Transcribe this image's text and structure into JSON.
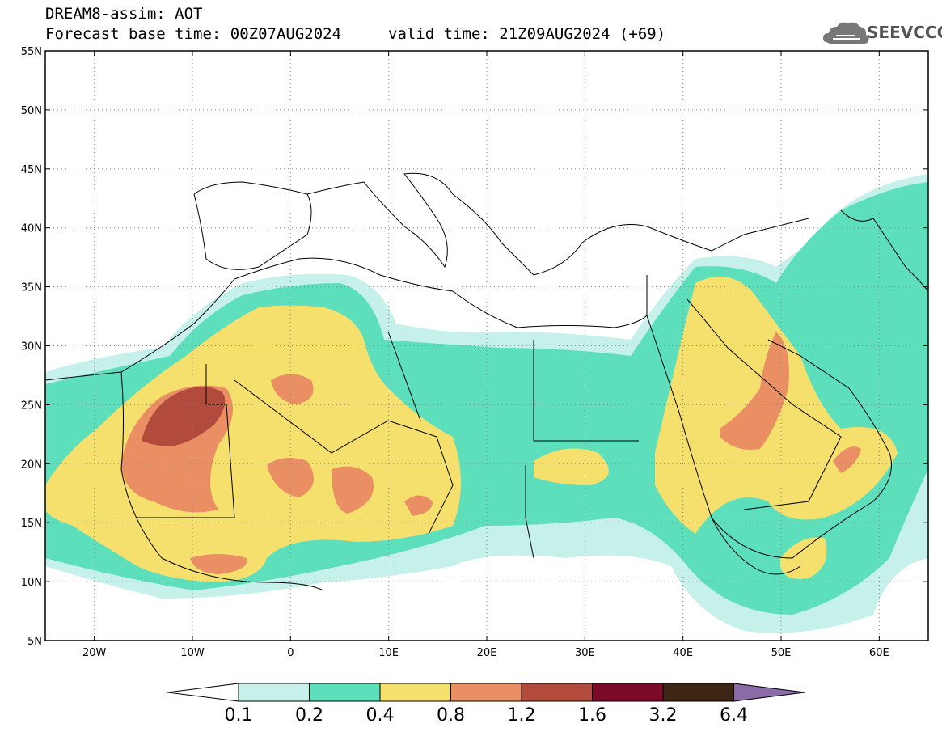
{
  "header": {
    "title": "DREAM8-assim: AOT",
    "base_time": "Forecast base time: 00Z07AUG2024",
    "valid_time": "valid time: 21Z09AUG2024 (+69)"
  },
  "logo": {
    "text": "SEEVCCC",
    "icon": "cloud-icon"
  },
  "map": {
    "lon_range": [
      -25,
      65
    ],
    "lat_range": [
      5,
      55
    ],
    "lat_ticks": [
      {
        "value": 55,
        "label": "55N"
      },
      {
        "value": 50,
        "label": "50N"
      },
      {
        "value": 45,
        "label": "45N"
      },
      {
        "value": 40,
        "label": "40N"
      },
      {
        "value": 35,
        "label": "35N"
      },
      {
        "value": 30,
        "label": "30N"
      },
      {
        "value": 25,
        "label": "25N"
      },
      {
        "value": 20,
        "label": "20N"
      },
      {
        "value": 15,
        "label": "15N"
      },
      {
        "value": 10,
        "label": "10N"
      },
      {
        "value": 5,
        "label": "5N"
      }
    ],
    "lon_ticks": [
      {
        "value": -20,
        "label": "20W"
      },
      {
        "value": -10,
        "label": "10W"
      },
      {
        "value": 0,
        "label": "0"
      },
      {
        "value": 10,
        "label": "10E"
      },
      {
        "value": 20,
        "label": "20E"
      },
      {
        "value": 30,
        "label": "30E"
      },
      {
        "value": 40,
        "label": "40E"
      },
      {
        "value": 50,
        "label": "50E"
      },
      {
        "value": 60,
        "label": "60E"
      }
    ],
    "grid": true
  },
  "colorbar": {
    "levels": [
      "0.1",
      "0.2",
      "0.4",
      "0.8",
      "1.2",
      "1.6",
      "3.2",
      "6.4"
    ],
    "colors": [
      "#ffffff",
      "#c6f0ea",
      "#5ddfbc",
      "#f5e06e",
      "#ea8f63",
      "#b24b3c",
      "#7e0a29",
      "#3d2614",
      "#8b6aa8"
    ]
  }
}
